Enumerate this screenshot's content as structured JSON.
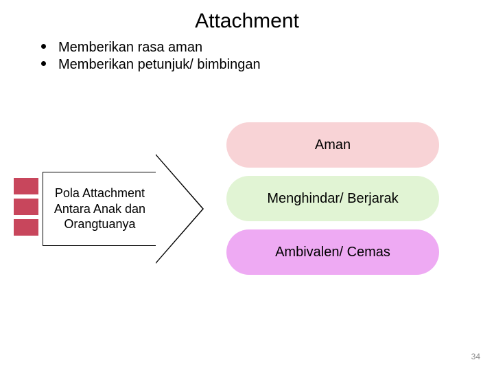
{
  "title": "Attachment",
  "bullets": [
    "Memberikan rasa aman",
    "Memberikan petunjuk/ bimbingan"
  ],
  "arrow": {
    "label": "Pola Attachment Antara Anak dan Orangtuanya",
    "stripe_color": "#c8465c",
    "body_bg": "#ffffff",
    "border_color": "#000000"
  },
  "pills": [
    {
      "label": "Aman",
      "bg": "#f8d3d6"
    },
    {
      "label": "Menghindar/ Berjarak",
      "bg": "#e1f4d4"
    },
    {
      "label": "Ambivalen/ Cemas",
      "bg": "#eeaaf3"
    }
  ],
  "page_number": "34",
  "colors": {
    "background": "#ffffff",
    "text": "#000000",
    "page_num": "#8b8b8b"
  },
  "fonts": {
    "title_size": 30,
    "bullet_size": 20,
    "arrow_label_size": 18,
    "pill_label_size": 20,
    "page_num_size": 12
  }
}
